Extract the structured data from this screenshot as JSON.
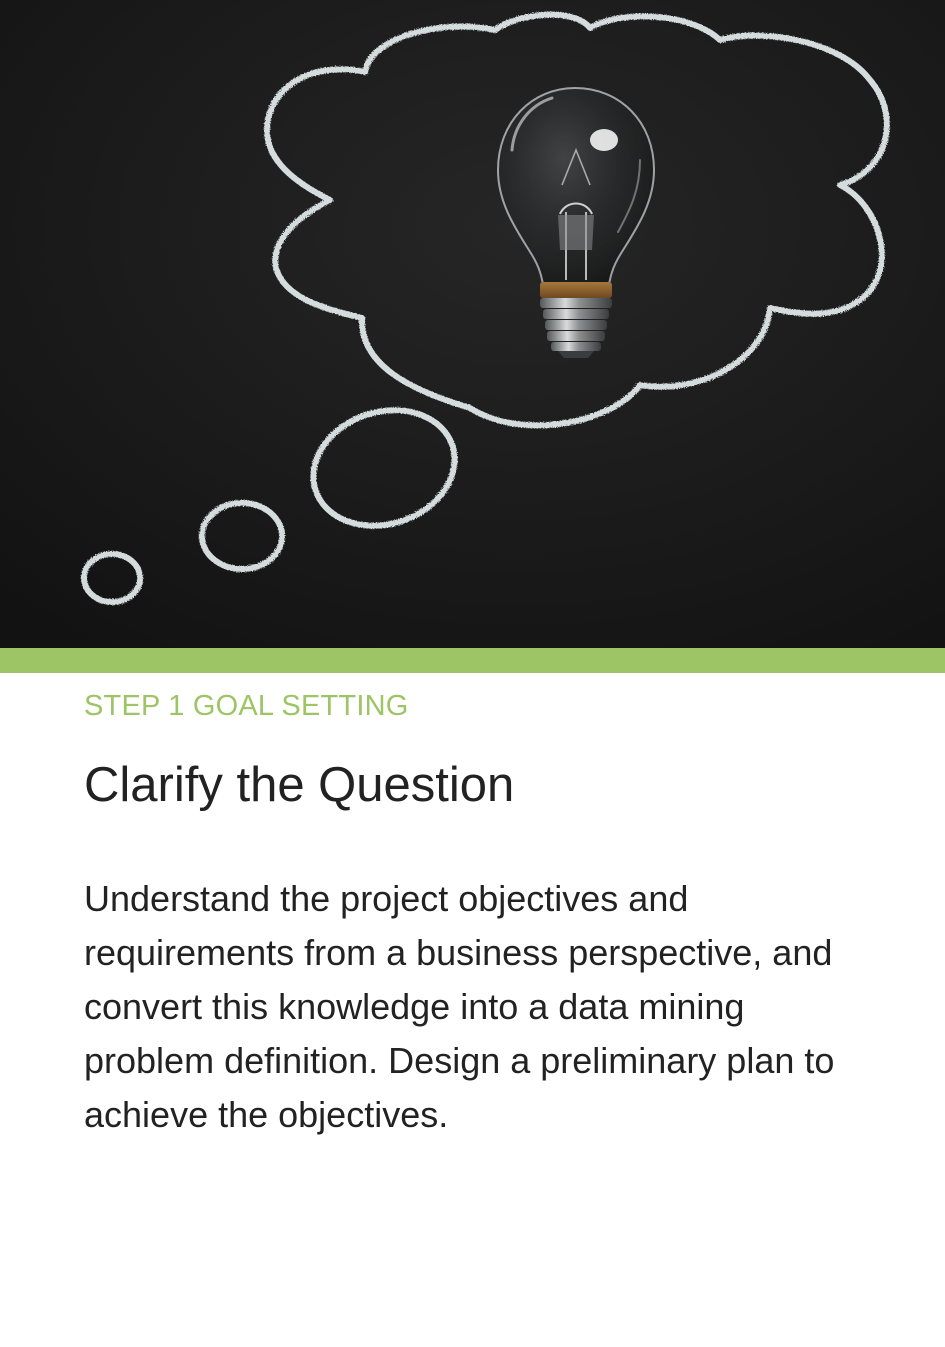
{
  "hero": {
    "image_subject": "light bulb with chalk-drawn thought bubble on blackboard"
  },
  "card": {
    "step_label": "STEP 1 GOAL SETTING",
    "title": "Clarify the Question",
    "body": "Understand the project objectives and requirements from a business perspective, and convert this knowledge into a data mining problem definition. Design a preliminary plan to achieve the objectives."
  },
  "colors": {
    "accent": "#9dc566",
    "chalkboard": "#1b1b1b",
    "chalk": "#e6eef0",
    "text": "#222222"
  }
}
